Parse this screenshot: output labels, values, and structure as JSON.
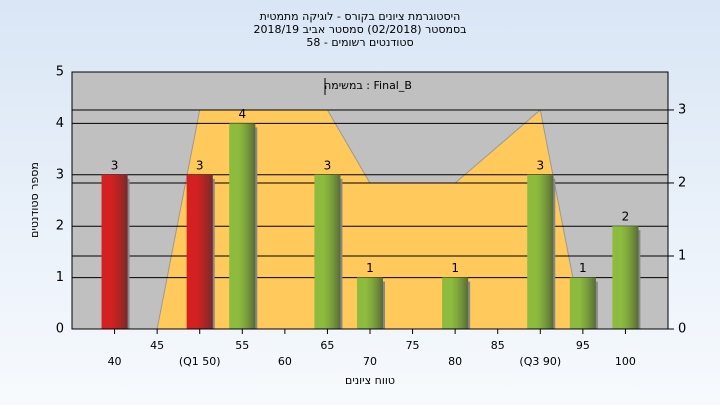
{
  "chart_data": {
    "type": "bar",
    "title_lines": [
      "היסטוגרמת ציונים בקורס - לוגיקה מתמטית",
      "בסמסטר (02/2018) סמסטר אביב 2018/19",
      "סטודנטים רשומים - 58"
    ],
    "y_label": "מספר סטודנטים",
    "x_label": "טווח ציונים",
    "xlim": [
      35,
      105
    ],
    "xticks": [
      40,
      45,
      {
        "value": 50,
        "label": "(Q1 50)"
      },
      55,
      60,
      65,
      70,
      75,
      80,
      85,
      {
        "value": 90,
        "label": "(Q3 90)"
      },
      95,
      100
    ],
    "ylim": [
      0,
      5
    ],
    "yticks": [
      0,
      1,
      2,
      3,
      4,
      5
    ],
    "y2lim": [
      0,
      3.52
    ],
    "y2ticks": [
      0,
      1,
      2,
      3
    ],
    "grid": true,
    "bars": {
      "x": [
        40,
        50,
        55,
        65,
        70,
        80,
        90,
        95,
        100
      ],
      "values": [
        3,
        3,
        4,
        3,
        1,
        1,
        3,
        1,
        2
      ],
      "colors": [
        "#d42020",
        "#d42020",
        "#8dbb3e",
        "#8dbb3e",
        "#8dbb3e",
        "#8dbb3e",
        "#8dbb3e",
        "#8dbb3e",
        "#8dbb3e"
      ]
    },
    "area": {
      "name": "במשימה : Final_B",
      "axis": "y2",
      "color": "#ffc95c",
      "x": [
        45,
        50,
        55,
        60,
        65,
        70,
        75,
        80,
        85,
        90,
        95
      ],
      "values": [
        0,
        3,
        3,
        3,
        3,
        2,
        2,
        2,
        2.5,
        3,
        0
      ]
    }
  }
}
